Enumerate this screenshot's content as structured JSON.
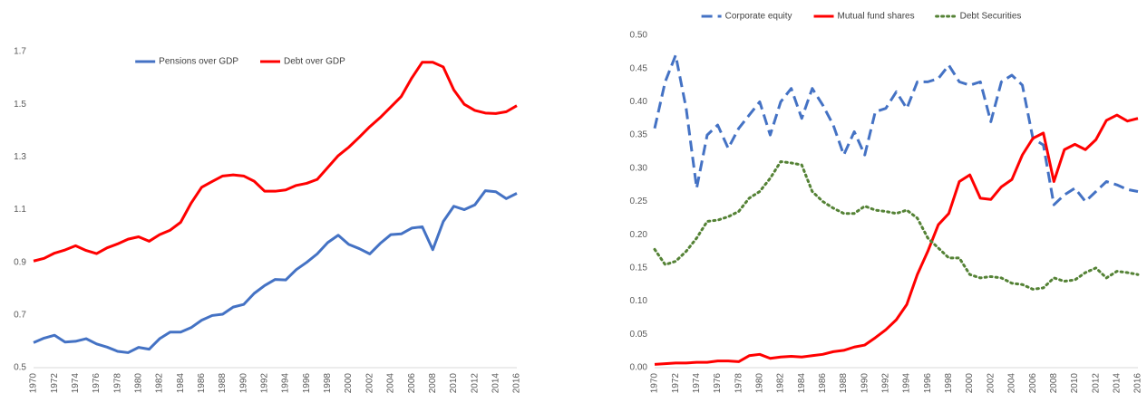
{
  "chart_data": [
    {
      "type": "line",
      "x": [
        1970,
        1971,
        1972,
        1973,
        1974,
        1975,
        1976,
        1977,
        1978,
        1979,
        1980,
        1981,
        1982,
        1983,
        1984,
        1985,
        1986,
        1987,
        1988,
        1989,
        1990,
        1991,
        1992,
        1993,
        1994,
        1995,
        1996,
        1997,
        1998,
        1999,
        2000,
        2001,
        2002,
        2003,
        2004,
        2005,
        2006,
        2007,
        2008,
        2009,
        2010,
        2011,
        2012,
        2013,
        2014,
        2015,
        2016
      ],
      "series": [
        {
          "name": "Pensions over GDP",
          "color": "#4472c4",
          "line_style": "solid",
          "values": [
            0.595,
            0.612,
            0.623,
            0.597,
            0.6,
            0.61,
            0.59,
            0.578,
            0.562,
            0.557,
            0.577,
            0.57,
            0.61,
            0.635,
            0.635,
            0.652,
            0.68,
            0.698,
            0.703,
            0.73,
            0.74,
            0.782,
            0.812,
            0.835,
            0.833,
            0.872,
            0.9,
            0.932,
            0.975,
            1.003,
            0.968,
            0.952,
            0.932,
            0.972,
            1.005,
            1.008,
            1.03,
            1.035,
            0.948,
            1.055,
            1.113,
            1.1,
            1.118,
            1.172,
            1.168,
            1.142,
            1.162
          ]
        },
        {
          "name": "Debt over GDP",
          "color": "#ff0000",
          "line_style": "solid",
          "values": [
            0.905,
            0.915,
            0.935,
            0.947,
            0.963,
            0.945,
            0.933,
            0.955,
            0.97,
            0.988,
            0.997,
            0.98,
            1.005,
            1.022,
            1.052,
            1.125,
            1.185,
            1.207,
            1.228,
            1.232,
            1.228,
            1.208,
            1.17,
            1.17,
            1.175,
            1.192,
            1.2,
            1.215,
            1.26,
            1.305,
            1.337,
            1.375,
            1.415,
            1.45,
            1.49,
            1.53,
            1.6,
            1.66,
            1.66,
            1.642,
            1.555,
            1.5,
            1.477,
            1.467,
            1.465,
            1.472,
            1.495
          ]
        }
      ],
      "xlim": [
        1970,
        2016
      ],
      "xticks": [
        1970,
        1972,
        1974,
        1976,
        1978,
        1980,
        1982,
        1984,
        1986,
        1988,
        1990,
        1992,
        1994,
        1996,
        1998,
        2000,
        2002,
        2004,
        2006,
        2008,
        2010,
        2012,
        2014,
        2016
      ],
      "ylim": [
        0.5,
        1.8
      ],
      "yticks": [
        0.5,
        0.7,
        0.9,
        1.1,
        1.3,
        1.5,
        1.7
      ],
      "grid": false,
      "legend": "top"
    },
    {
      "type": "line",
      "x": [
        1970,
        1971,
        1972,
        1973,
        1974,
        1975,
        1976,
        1977,
        1978,
        1979,
        1980,
        1981,
        1982,
        1983,
        1984,
        1985,
        1986,
        1987,
        1988,
        1989,
        1990,
        1991,
        1992,
        1993,
        1994,
        1995,
        1996,
        1997,
        1998,
        1999,
        2000,
        2001,
        2002,
        2003,
        2004,
        2005,
        2006,
        2007,
        2008,
        2009,
        2010,
        2011,
        2012,
        2013,
        2014,
        2015,
        2016
      ],
      "series": [
        {
          "name": "Corporate equity",
          "color": "#4472c4",
          "line_style": "dashed",
          "values": [
            0.36,
            0.43,
            0.47,
            0.39,
            0.27,
            0.35,
            0.365,
            0.33,
            0.36,
            0.38,
            0.4,
            0.35,
            0.4,
            0.42,
            0.375,
            0.42,
            0.395,
            0.365,
            0.32,
            0.355,
            0.32,
            0.385,
            0.39,
            0.415,
            0.39,
            0.43,
            0.43,
            0.435,
            0.455,
            0.43,
            0.425,
            0.43,
            0.37,
            0.43,
            0.44,
            0.425,
            0.345,
            0.335,
            0.245,
            0.26,
            0.27,
            0.25,
            0.265,
            0.28,
            0.275,
            0.268,
            0.265
          ]
        },
        {
          "name": "Mutual fund shares",
          "color": "#ff0000",
          "line_style": "solid",
          "values": [
            0.005,
            0.006,
            0.007,
            0.007,
            0.008,
            0.008,
            0.01,
            0.01,
            0.009,
            0.018,
            0.02,
            0.014,
            0.016,
            0.017,
            0.016,
            0.018,
            0.02,
            0.024,
            0.026,
            0.031,
            0.034,
            0.045,
            0.057,
            0.072,
            0.095,
            0.14,
            0.175,
            0.215,
            0.232,
            0.28,
            0.29,
            0.255,
            0.253,
            0.272,
            0.283,
            0.32,
            0.345,
            0.353,
            0.28,
            0.328,
            0.336,
            0.328,
            0.343,
            0.372,
            0.38,
            0.371,
            0.375
          ]
        },
        {
          "name": "Debt Securities",
          "color": "#548235",
          "line_style": "dotted",
          "values": [
            0.178,
            0.155,
            0.16,
            0.175,
            0.195,
            0.22,
            0.222,
            0.227,
            0.235,
            0.255,
            0.265,
            0.285,
            0.31,
            0.308,
            0.305,
            0.265,
            0.25,
            0.24,
            0.232,
            0.232,
            0.243,
            0.237,
            0.235,
            0.232,
            0.237,
            0.225,
            0.195,
            0.18,
            0.165,
            0.165,
            0.14,
            0.135,
            0.137,
            0.135,
            0.127,
            0.125,
            0.118,
            0.12,
            0.135,
            0.13,
            0.132,
            0.143,
            0.15,
            0.135,
            0.145,
            0.143,
            0.14
          ]
        }
      ],
      "xlim": [
        1970,
        2016
      ],
      "xticks": [
        1970,
        1972,
        1974,
        1976,
        1978,
        1980,
        1982,
        1984,
        1986,
        1988,
        1990,
        1992,
        1994,
        1996,
        1998,
        2000,
        2002,
        2004,
        2006,
        2008,
        2010,
        2012,
        2014,
        2016
      ],
      "ylim": [
        0,
        0.5
      ],
      "yticks": [
        {
          "value": 0,
          "label": "0.00"
        },
        {
          "value": 0.05,
          "label": "0.05"
        },
        {
          "value": 0.1,
          "label": "0.10"
        },
        {
          "value": 0.15,
          "label": "0.15"
        },
        {
          "value": 0.2,
          "label": "0.20"
        },
        {
          "value": 0.25,
          "label": "0.25"
        },
        {
          "value": 0.3,
          "label": "0.30"
        },
        {
          "value": 0.35,
          "label": "0.35"
        },
        {
          "value": 0.4,
          "label": "0.40"
        },
        {
          "value": 0.45,
          "label": "0.45"
        },
        {
          "value": 0.5,
          "label": "0.50"
        }
      ],
      "grid": false,
      "legend": "top"
    }
  ]
}
